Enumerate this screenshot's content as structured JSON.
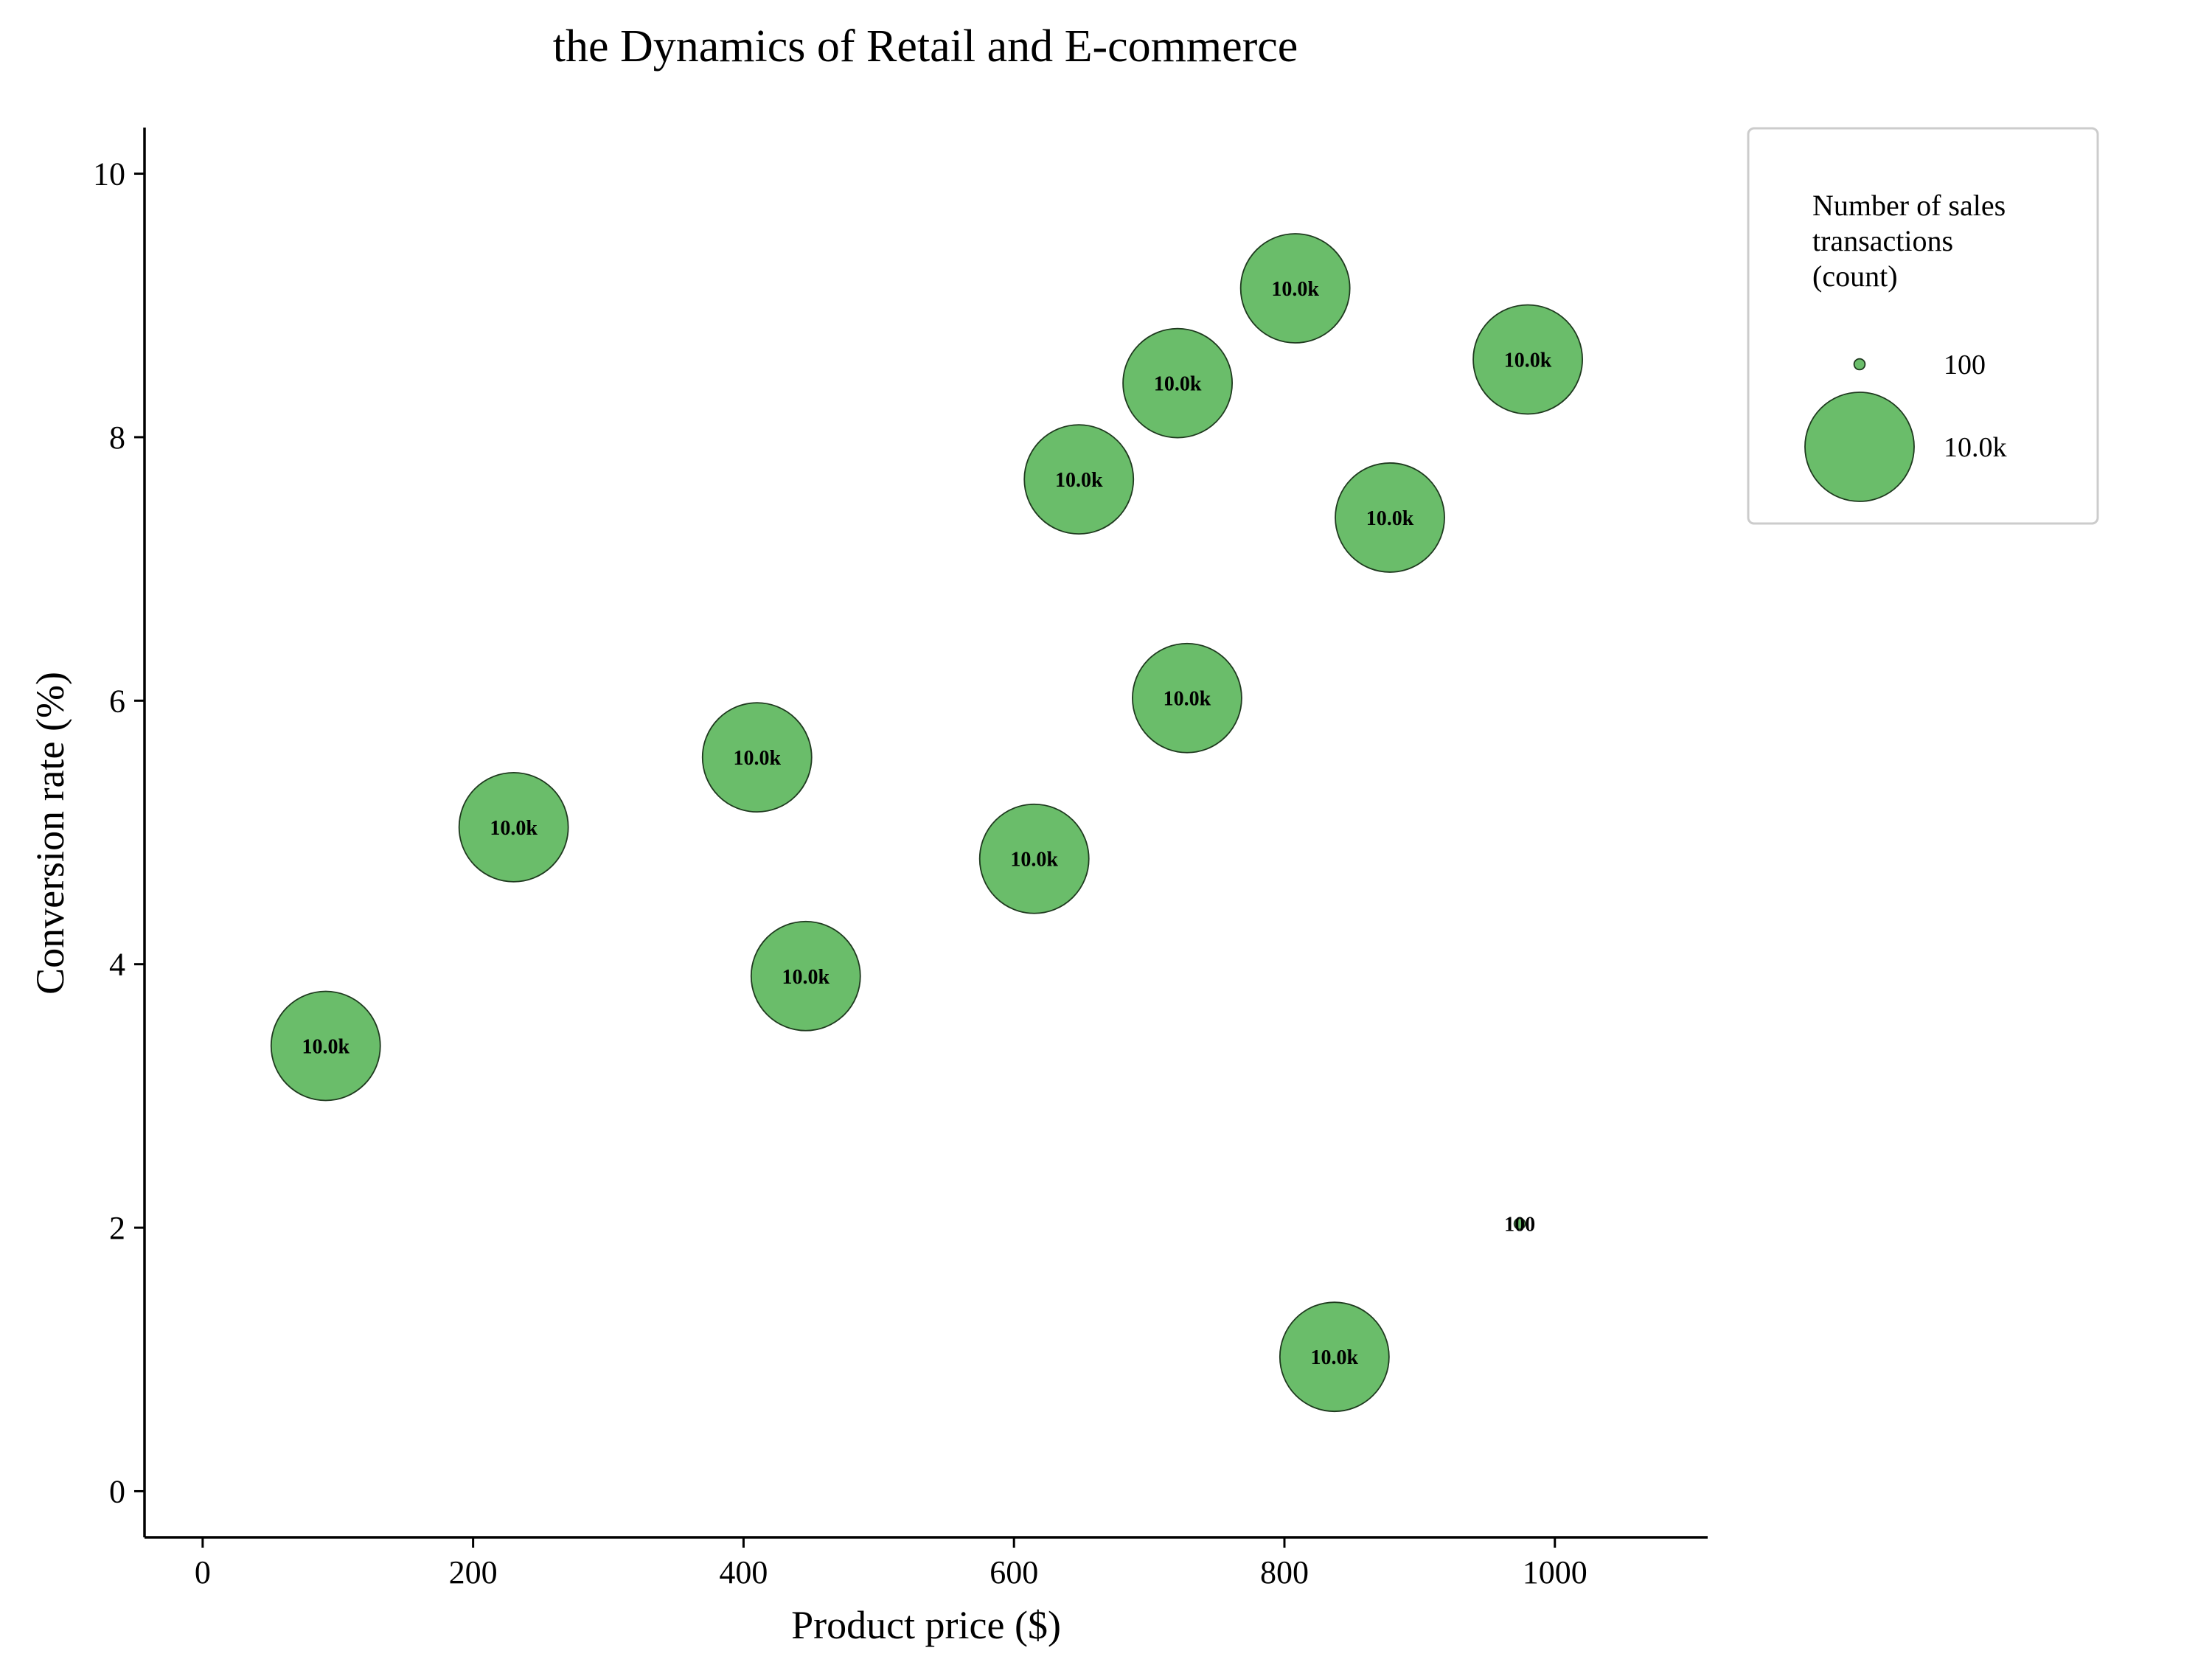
{
  "chart_data": {
    "type": "scatter",
    "title": "the Dynamics of Retail and E-commerce",
    "xlabel": "Product price ($)",
    "ylabel": "Conversion rate (%)",
    "xlim": [
      -43,
      1113
    ],
    "ylim": [
      -0.35,
      10.35
    ],
    "xticks": [
      0,
      200,
      400,
      600,
      800,
      1000
    ],
    "yticks": [
      0,
      2,
      4,
      6,
      8,
      10
    ],
    "grid": false,
    "bubble_color": "#6abd6a",
    "bubble_edge_color": "#1f3a1f",
    "size_variable": "Number of sales transactions (count)",
    "points": [
      {
        "x": 91,
        "y": 3.38,
        "size": 10000,
        "label": "10.0k"
      },
      {
        "x": 230,
        "y": 5.04,
        "size": 10000,
        "label": "10.0k"
      },
      {
        "x": 410,
        "y": 5.57,
        "size": 10000,
        "label": "10.0k"
      },
      {
        "x": 446,
        "y": 3.91,
        "size": 10000,
        "label": "10.0k"
      },
      {
        "x": 615,
        "y": 4.8,
        "size": 10000,
        "label": "10.0k"
      },
      {
        "x": 648,
        "y": 7.68,
        "size": 10000,
        "label": "10.0k"
      },
      {
        "x": 721,
        "y": 8.41,
        "size": 10000,
        "label": "10.0k"
      },
      {
        "x": 728,
        "y": 6.02,
        "size": 10000,
        "label": "10.0k"
      },
      {
        "x": 808,
        "y": 9.13,
        "size": 10000,
        "label": "10.0k"
      },
      {
        "x": 837,
        "y": 1.02,
        "size": 10000,
        "label": "10.0k"
      },
      {
        "x": 878,
        "y": 7.39,
        "size": 10000,
        "label": "10.0k"
      },
      {
        "x": 974,
        "y": 2.03,
        "size": 100,
        "label": "100"
      },
      {
        "x": 980,
        "y": 8.59,
        "size": 10000,
        "label": "10.0k"
      }
    ],
    "legend": {
      "placement": "right",
      "title_lines": [
        "Number of sales",
        "transactions",
        "(count)"
      ],
      "entries": [
        {
          "size": 100,
          "label": "100"
        },
        {
          "size": 10000,
          "label": "10.0k"
        }
      ]
    }
  }
}
